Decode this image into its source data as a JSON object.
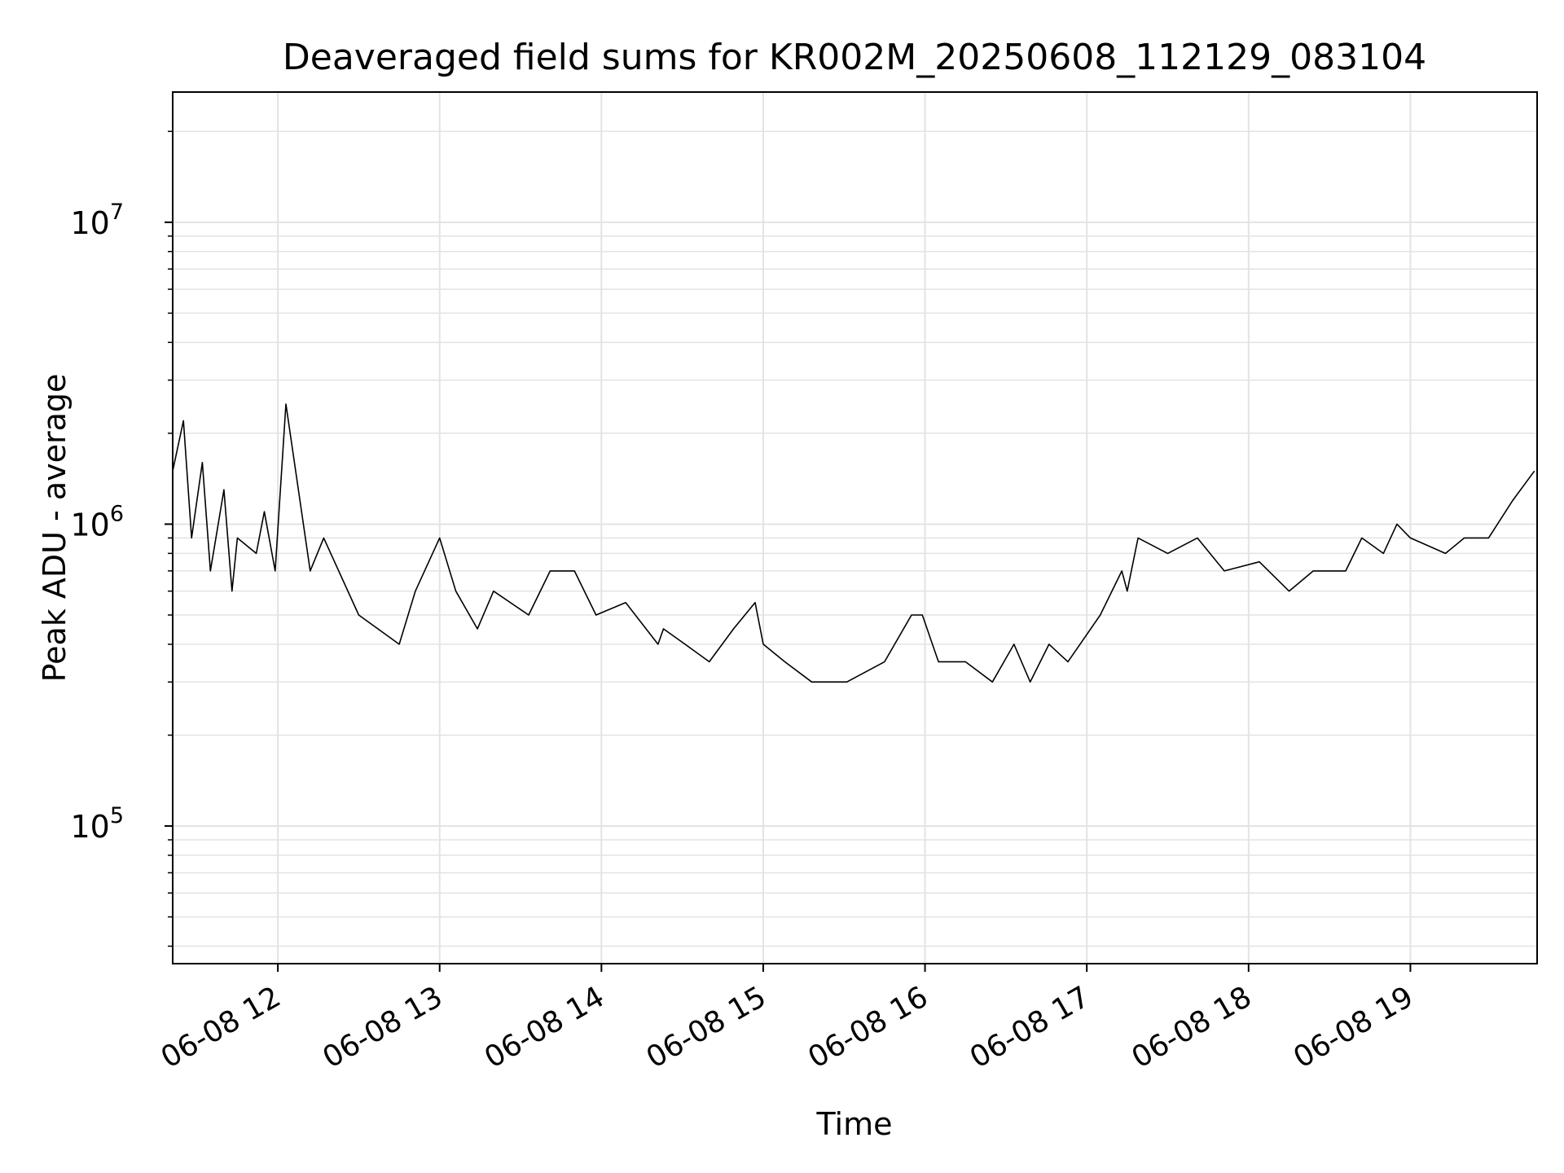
{
  "chart_data": {
    "type": "line",
    "title": "Deaveraged field sums for KR002M_20250608_112129_083104",
    "xlabel": "Time",
    "ylabel": "Peak ADU - average",
    "yscale": "log",
    "ylim": [
      35000,
      27000000
    ],
    "xlim": [
      "2025-06-08 11:21",
      "2025-06-08 19:47"
    ],
    "grid": true,
    "x_tick_labels": [
      "06-08 12",
      "06-08 13",
      "06-08 14",
      "06-08 15",
      "06-08 16",
      "06-08 17",
      "06-08 18",
      "06-08 19"
    ],
    "x_tick_times": [
      "2025-06-08 12:00",
      "2025-06-08 13:00",
      "2025-06-08 14:00",
      "2025-06-08 15:00",
      "2025-06-08 16:00",
      "2025-06-08 17:00",
      "2025-06-08 18:00",
      "2025-06-08 19:00"
    ],
    "y_ticks": [
      {
        "value": 100000,
        "base": "10",
        "exp": "5"
      },
      {
        "value": 1000000,
        "base": "10",
        "exp": "6"
      },
      {
        "value": 10000000,
        "base": "10",
        "exp": "7"
      }
    ],
    "series": [
      {
        "color": "#000000",
        "x": [
          "2025-06-08 11:21",
          "2025-06-08 11:25",
          "2025-06-08 11:28",
          "2025-06-08 11:32",
          "2025-06-08 11:35",
          "2025-06-08 11:40",
          "2025-06-08 11:43",
          "2025-06-08 11:45",
          "2025-06-08 11:52",
          "2025-06-08 11:55",
          "2025-06-08 11:59",
          "2025-06-08 12:03",
          "2025-06-08 12:12",
          "2025-06-08 12:17",
          "2025-06-08 12:30",
          "2025-06-08 12:45",
          "2025-06-08 12:51",
          "2025-06-08 13:00",
          "2025-06-08 13:06",
          "2025-06-08 13:14",
          "2025-06-08 13:20",
          "2025-06-08 13:33",
          "2025-06-08 13:41",
          "2025-06-08 13:50",
          "2025-06-08 13:58",
          "2025-06-08 14:09",
          "2025-06-08 14:21",
          "2025-06-08 14:23",
          "2025-06-08 14:31",
          "2025-06-08 14:40",
          "2025-06-08 14:49",
          "2025-06-08 14:57",
          "2025-06-08 15:00",
          "2025-06-08 15:08",
          "2025-06-08 15:18",
          "2025-06-08 15:31",
          "2025-06-08 15:45",
          "2025-06-08 15:55",
          "2025-06-08 15:59",
          "2025-06-08 16:05",
          "2025-06-08 16:15",
          "2025-06-08 16:25",
          "2025-06-08 16:33",
          "2025-06-08 16:39",
          "2025-06-08 16:46",
          "2025-06-08 16:53",
          "2025-06-08 17:05",
          "2025-06-08 17:13",
          "2025-06-08 17:15",
          "2025-06-08 17:19",
          "2025-06-08 17:30",
          "2025-06-08 17:41",
          "2025-06-08 17:51",
          "2025-06-08 18:04",
          "2025-06-08 18:15",
          "2025-06-08 18:24",
          "2025-06-08 18:36",
          "2025-06-08 18:42",
          "2025-06-08 18:50",
          "2025-06-08 18:55",
          "2025-06-08 19:00",
          "2025-06-08 19:13",
          "2025-06-08 19:20",
          "2025-06-08 19:29",
          "2025-06-08 19:38",
          "2025-06-08 19:46"
        ],
        "y": [
          1500000,
          2200000,
          900000,
          1600000,
          700000,
          1300000,
          600000,
          900000,
          800000,
          1100000,
          700000,
          2500000,
          700000,
          900000,
          500000,
          400000,
          600000,
          900000,
          600000,
          450000,
          600000,
          500000,
          700000,
          700000,
          500000,
          550000,
          400000,
          450000,
          400000,
          350000,
          450000,
          550000,
          400000,
          350000,
          300000,
          300000,
          350000,
          500000,
          500000,
          350000,
          350000,
          300000,
          400000,
          300000,
          400000,
          350000,
          500000,
          700000,
          600000,
          900000,
          800000,
          900000,
          700000,
          750000,
          600000,
          700000,
          700000,
          900000,
          800000,
          1000000,
          900000,
          800000,
          900000,
          900000,
          1200000,
          1500000
        ]
      }
    ]
  }
}
